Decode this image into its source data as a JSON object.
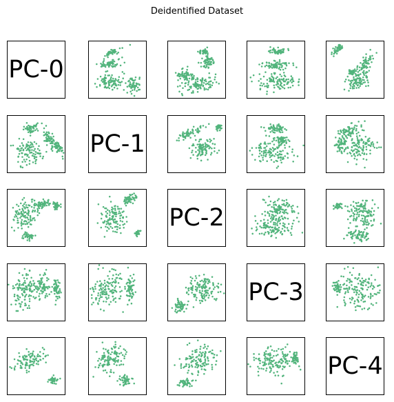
{
  "figure": {
    "title": "Deidentified Dataset"
  },
  "chart_data": {
    "type": "scatter",
    "title": "Deidentified Dataset",
    "layout": "pair-plot",
    "marker_color": "#52b47c",
    "grid": false,
    "axes_visible": false,
    "variables": [
      "PC-0",
      "PC-1",
      "PC-2",
      "PC-3",
      "PC-4"
    ],
    "panels": [
      [
        {
          "blobs": []
        },
        {
          "blobs": [
            [
              0.4,
              0.2,
              0.18,
              0.05,
              -25
            ],
            [
              0.35,
              0.4,
              0.22,
              0.07,
              -15
            ],
            [
              0.38,
              0.72,
              0.24,
              0.15,
              0
            ],
            [
              0.78,
              0.78,
              0.12,
              0.12,
              0
            ]
          ]
        },
        {
          "blobs": [
            [
              0.55,
              0.75,
              0.35,
              0.14,
              -8
            ],
            [
              0.7,
              0.35,
              0.14,
              0.12,
              0
            ],
            [
              0.3,
              0.6,
              0.15,
              0.1,
              15
            ],
            [
              0.62,
              0.18,
              0.08,
              0.05,
              0
            ]
          ]
        },
        {
          "blobs": [
            [
              0.52,
              0.18,
              0.18,
              0.06,
              0
            ],
            [
              0.52,
              0.42,
              0.25,
              0.08,
              0
            ],
            [
              0.52,
              0.72,
              0.38,
              0.15,
              0
            ]
          ]
        },
        {
          "blobs": [
            [
              0.18,
              0.15,
              0.12,
              0.06,
              -40
            ],
            [
              0.68,
              0.4,
              0.09,
              0.2,
              30
            ],
            [
              0.55,
              0.7,
              0.25,
              0.12,
              -35
            ],
            [
              0.45,
              0.55,
              0.08,
              0.06,
              0
            ]
          ]
        }
      ],
      [
        {
          "blobs": [
            [
              0.4,
              0.22,
              0.14,
              0.08,
              -20
            ],
            [
              0.38,
              0.65,
              0.22,
              0.22,
              0
            ],
            [
              0.72,
              0.4,
              0.07,
              0.2,
              -20
            ],
            [
              0.88,
              0.55,
              0.06,
              0.16,
              -25
            ]
          ]
        },
        {
          "blobs": []
        },
        {
          "blobs": [
            [
              0.4,
              0.3,
              0.24,
              0.07,
              -25
            ],
            [
              0.6,
              0.6,
              0.22,
              0.18,
              0
            ],
            [
              0.88,
              0.2,
              0.06,
              0.06,
              0
            ]
          ]
        },
        {
          "blobs": [
            [
              0.5,
              0.22,
              0.2,
              0.07,
              0
            ],
            [
              0.6,
              0.42,
              0.15,
              0.06,
              0
            ],
            [
              0.48,
              0.65,
              0.36,
              0.2,
              0
            ]
          ]
        },
        {
          "blobs": [
            [
              0.42,
              0.25,
              0.22,
              0.1,
              -20
            ],
            [
              0.6,
              0.55,
              0.26,
              0.22,
              -20
            ],
            [
              0.25,
              0.5,
              0.1,
              0.12,
              0
            ]
          ]
        }
      ],
      [
        {
          "blobs": [
            [
              0.3,
              0.45,
              0.22,
              0.28,
              15
            ],
            [
              0.62,
              0.25,
              0.16,
              0.07,
              -10
            ],
            [
              0.85,
              0.28,
              0.07,
              0.06,
              0
            ],
            [
              0.35,
              0.82,
              0.12,
              0.06,
              0
            ]
          ]
        },
        {
          "blobs": [
            [
              0.4,
              0.5,
              0.22,
              0.26,
              20
            ],
            [
              0.7,
              0.18,
              0.14,
              0.08,
              -30
            ],
            [
              0.85,
              0.75,
              0.05,
              0.06,
              0
            ]
          ]
        },
        {
          "blobs": []
        },
        {
          "blobs": [
            [
              0.55,
              0.35,
              0.28,
              0.2,
              0
            ],
            [
              0.45,
              0.65,
              0.34,
              0.18,
              0
            ]
          ]
        },
        {
          "blobs": [
            [
              0.6,
              0.42,
              0.26,
              0.26,
              0
            ],
            [
              0.2,
              0.28,
              0.07,
              0.06,
              0
            ],
            [
              0.55,
              0.8,
              0.22,
              0.1,
              0
            ]
          ]
        }
      ],
      [
        {
          "blobs": [
            [
              0.3,
              0.45,
              0.22,
              0.32,
              0
            ],
            [
              0.62,
              0.4,
              0.1,
              0.22,
              0
            ],
            [
              0.85,
              0.45,
              0.07,
              0.18,
              0
            ]
          ]
        },
        {
          "blobs": [
            [
              0.32,
              0.45,
              0.28,
              0.34,
              0
            ],
            [
              0.72,
              0.45,
              0.08,
              0.22,
              0
            ]
          ]
        },
        {
          "blobs": [
            [
              0.62,
              0.45,
              0.32,
              0.26,
              0
            ],
            [
              0.2,
              0.75,
              0.12,
              0.12,
              0
            ]
          ]
        },
        {
          "blobs": []
        },
        {
          "blobs": [
            [
              0.55,
              0.45,
              0.34,
              0.32,
              0
            ],
            [
              0.18,
              0.42,
              0.07,
              0.1,
              0
            ]
          ]
        }
      ],
      [
        {
          "blobs": [
            [
              0.4,
              0.4,
              0.3,
              0.16,
              -30
            ],
            [
              0.8,
              0.75,
              0.08,
              0.06,
              -30
            ]
          ]
        },
        {
          "blobs": [
            [
              0.38,
              0.35,
              0.3,
              0.22,
              -20
            ],
            [
              0.65,
              0.75,
              0.12,
              0.08,
              0
            ]
          ]
        },
        {
          "blobs": [
            [
              0.55,
              0.4,
              0.34,
              0.22,
              -20
            ],
            [
              0.3,
              0.8,
              0.12,
              0.08,
              0
            ]
          ]
        },
        {
          "blobs": [
            [
              0.45,
              0.4,
              0.36,
              0.26,
              0
            ],
            [
              0.85,
              0.35,
              0.06,
              0.12,
              0
            ]
          ]
        },
        {
          "blobs": []
        }
      ]
    ]
  }
}
